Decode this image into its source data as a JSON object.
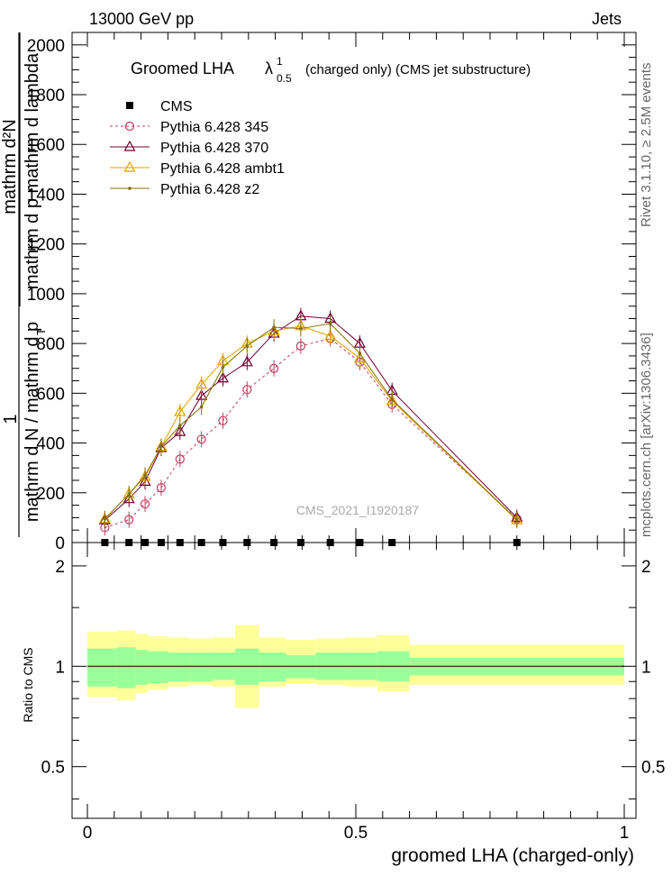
{
  "header": {
    "left": "13000 GeV pp",
    "right": "Jets"
  },
  "side": {
    "rivet": "Rivet 3.1.10, ≥ 2.5M events",
    "mcplots": "mcplots.cern.ch [arXiv:1306.3436]"
  },
  "chart_data": [
    {
      "type": "line",
      "title": "Groomed LHA",
      "title_lambda": "λ",
      "title_lambda_sup": "1",
      "title_lambda_sub": "0.5",
      "title_suffix": "(charged only) (CMS jet substructure)",
      "watermark": "CMS_2021_I1920187",
      "ylabel_numerator": "mathrm d²N",
      "ylabel_denominator": "mathrm d p_T mathrm d lambda",
      "ylabel_denominator_alt": "mathrm d p    mathrm d lambda",
      "ylabel_subscript": "T",
      "ylabel_prefix": "1",
      "ylabel_full": "mathrm d N / mathrm d p",
      "xlim": [
        0,
        1
      ],
      "ylim": [
        0,
        2050
      ],
      "yticks": [
        0,
        200,
        400,
        600,
        800,
        1000,
        1200,
        1400,
        1600,
        1800,
        2000
      ],
      "ytick_labels": [
        "0",
        "200",
        "400",
        "600",
        "800",
        "1000",
        "1200",
        "1400",
        "1600",
        "1800",
        "2000"
      ],
      "legend_position": "top-left",
      "x": [
        0.0325,
        0.0775,
        0.1075,
        0.1375,
        0.1725,
        0.2125,
        0.2525,
        0.2975,
        0.3475,
        0.3975,
        0.4525,
        0.5075,
        0.5675,
        0.8
      ],
      "cms": [
        3,
        3,
        3,
        3,
        3,
        3,
        3,
        3,
        3,
        3,
        3,
        3,
        3,
        3
      ],
      "series": [
        {
          "name": "CMS",
          "color": "#000000",
          "marker": "square",
          "values": [
            3,
            3,
            3,
            3,
            3,
            3,
            3,
            3,
            3,
            3,
            3,
            3,
            3,
            3
          ]
        },
        {
          "name": "Pythia 6.428 345",
          "color": "#c0405f",
          "marker": "circle",
          "dashed": true,
          "values": [
            60,
            92,
            155,
            220,
            335,
            415,
            490,
            615,
            700,
            790,
            820,
            725,
            555,
            95
          ]
        },
        {
          "name": "Pythia 6.428 370",
          "color": "#700030",
          "marker": "triangle",
          "dashed": false,
          "values": [
            90,
            175,
            245,
            380,
            445,
            590,
            660,
            725,
            840,
            910,
            900,
            800,
            610,
            100
          ]
        },
        {
          "name": "Pythia 6.428 ambt1",
          "color": "#e0a000",
          "marker": "triangle",
          "dashed": false,
          "values": [
            95,
            195,
            265,
            385,
            525,
            635,
            730,
            800,
            850,
            870,
            830,
            740,
            570,
            90
          ]
        },
        {
          "name": "Pythia 6.428 z2",
          "color": "#807000",
          "marker": "dot",
          "dashed": false,
          "values": [
            95,
            195,
            270,
            385,
            470,
            545,
            705,
            790,
            865,
            860,
            880,
            760,
            575,
            92
          ]
        }
      ]
    },
    {
      "type": "area",
      "ylabel": "Ratio to CMS",
      "xlabel": "groomed LHA (charged-only)",
      "xlim": [
        0,
        1
      ],
      "ylim": [
        0.35,
        2.35
      ],
      "yticks": [
        0.5,
        1,
        2
      ],
      "ytick_labels": [
        "0.5",
        "1",
        "2"
      ],
      "xticks": [
        0,
        0.5,
        1
      ],
      "xtick_labels": [
        "0",
        "0.5",
        "1"
      ],
      "bin_edges": [
        0.0,
        0.055,
        0.09,
        0.1125,
        0.15,
        0.19,
        0.2325,
        0.275,
        0.32,
        0.37,
        0.425,
        0.48,
        0.54,
        0.6,
        1.0
      ],
      "inner_band": [
        [
          0.87,
          1.13
        ],
        [
          0.86,
          1.14
        ],
        [
          0.88,
          1.12
        ],
        [
          0.89,
          1.11
        ],
        [
          0.9,
          1.1
        ],
        [
          0.9,
          1.1
        ],
        [
          0.91,
          1.1
        ],
        [
          0.88,
          1.13
        ],
        [
          0.9,
          1.1
        ],
        [
          0.92,
          1.08
        ],
        [
          0.91,
          1.1
        ],
        [
          0.91,
          1.1
        ],
        [
          0.9,
          1.11
        ],
        [
          0.94,
          1.06
        ]
      ],
      "outer_band": [
        [
          0.81,
          1.27
        ],
        [
          0.79,
          1.28
        ],
        [
          0.83,
          1.25
        ],
        [
          0.85,
          1.23
        ],
        [
          0.87,
          1.22
        ],
        [
          0.88,
          1.21
        ],
        [
          0.87,
          1.22
        ],
        [
          0.75,
          1.33
        ],
        [
          0.87,
          1.22
        ],
        [
          0.89,
          1.2
        ],
        [
          0.88,
          1.21
        ],
        [
          0.87,
          1.22
        ],
        [
          0.84,
          1.24
        ],
        [
          0.88,
          1.16
        ]
      ],
      "band_colors": {
        "inner": "#99ff99",
        "outer": "#ffff99"
      }
    }
  ]
}
